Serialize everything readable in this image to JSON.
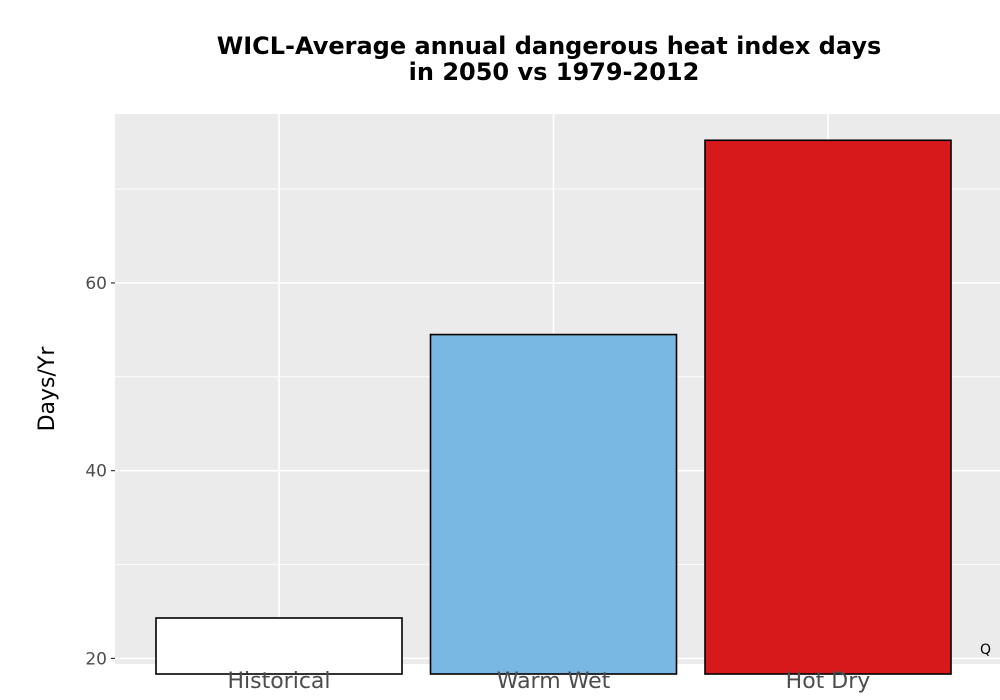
{
  "chart_data": {
    "type": "bar",
    "title_lines": [
      "WICL-Average annual dangerous heat index days",
      "in 2050 vs 1979-2012"
    ],
    "xlabel": "",
    "ylabel": "Days/Yr",
    "categories": [
      "Historical",
      "Warm Wet",
      "Hot Dry"
    ],
    "values": [
      24.3,
      54.5,
      75.2
    ],
    "colors": [
      "#ffffff",
      "#79b8e2",
      "#d7191c"
    ],
    "bar_outline_color": "#000000",
    "ylim": [
      19.4,
      78.0
    ],
    "yticks": [
      20,
      40,
      60
    ],
    "ytick_labels": [
      "20",
      "40",
      "60"
    ],
    "grid": true,
    "panel_background": "#ebebeb",
    "grid_color": "#ffffff",
    "corner_note": "Q"
  }
}
